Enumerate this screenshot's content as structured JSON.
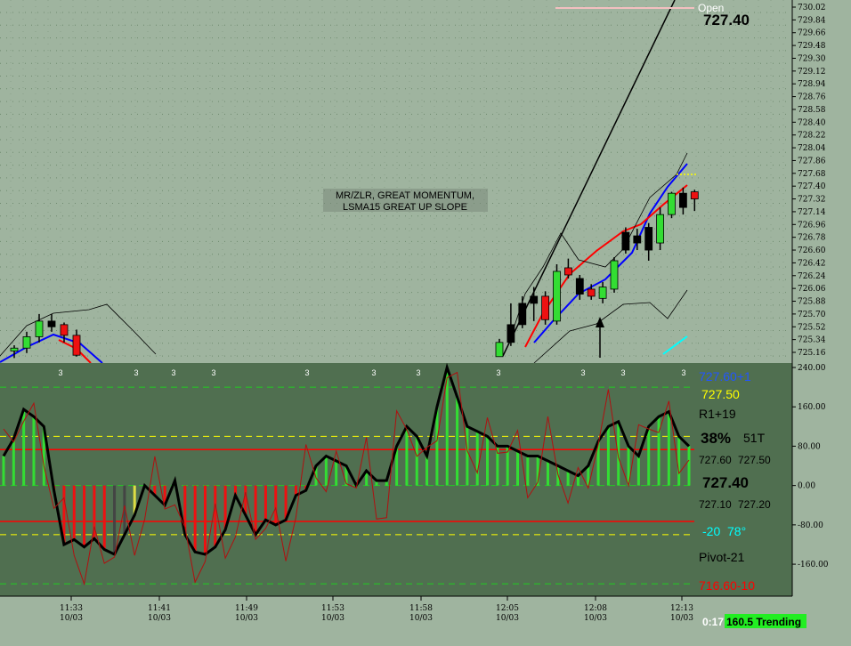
{
  "chart_data": [
    {
      "type": "candlestick",
      "panel": "price",
      "y_ticks": [
        "730.02",
        "729.84",
        "729.66",
        "729.48",
        "729.30",
        "729.12",
        "728.94",
        "728.76",
        "728.58",
        "728.40",
        "728.22",
        "728.04",
        "727.86",
        "727.68",
        "727.40",
        "727.32",
        "727.14",
        "726.96",
        "726.78",
        "726.60",
        "726.42",
        "726.24",
        "726.06",
        "725.88",
        "725.70",
        "725.52",
        "725.34",
        "725.16"
      ],
      "ylim": [
        725.1,
        730.02
      ],
      "last_price": "727.40",
      "open_label": "Open",
      "annotation": [
        "MR/ZLR, GREAT MOMENTUM,",
        "LSMA15 GREAT UP SLOPE"
      ],
      "candles_left": [
        {
          "o": 725.18,
          "h": 725.26,
          "l": 725.08,
          "c": 725.22,
          "color": "green"
        },
        {
          "o": 725.22,
          "h": 725.45,
          "l": 725.15,
          "c": 725.38,
          "color": "green"
        },
        {
          "o": 725.38,
          "h": 725.7,
          "l": 725.3,
          "c": 725.6,
          "color": "green"
        },
        {
          "o": 725.6,
          "h": 725.7,
          "l": 725.45,
          "c": 725.52,
          "color": "black"
        },
        {
          "o": 725.55,
          "h": 725.58,
          "l": 725.3,
          "c": 725.4,
          "color": "red"
        },
        {
          "o": 725.4,
          "h": 725.48,
          "l": 725.1,
          "c": 725.12,
          "color": "red"
        }
      ],
      "candles_right": [
        {
          "o": 725.1,
          "h": 725.35,
          "l": 725.1,
          "c": 725.3,
          "color": "green"
        },
        {
          "o": 725.3,
          "h": 725.85,
          "l": 725.25,
          "c": 725.55,
          "color": "black"
        },
        {
          "o": 725.55,
          "h": 725.95,
          "l": 725.5,
          "c": 725.85,
          "color": "black"
        },
        {
          "o": 725.85,
          "h": 726.08,
          "l": 725.6,
          "c": 725.95,
          "color": "black"
        },
        {
          "o": 725.95,
          "h": 726.02,
          "l": 725.55,
          "c": 725.62,
          "color": "red"
        },
        {
          "o": 725.6,
          "h": 726.4,
          "l": 725.55,
          "c": 726.3,
          "color": "green"
        },
        {
          "o": 726.35,
          "h": 726.48,
          "l": 726.2,
          "c": 726.25,
          "color": "red"
        },
        {
          "o": 726.2,
          "h": 726.25,
          "l": 725.9,
          "c": 725.98,
          "color": "black"
        },
        {
          "o": 726.05,
          "h": 726.12,
          "l": 725.9,
          "c": 725.95,
          "color": "red"
        },
        {
          "o": 725.92,
          "h": 726.15,
          "l": 725.85,
          "c": 726.08,
          "color": "green"
        },
        {
          "o": 726.05,
          "h": 726.5,
          "l": 726.0,
          "c": 726.45,
          "color": "green"
        },
        {
          "o": 726.6,
          "h": 726.92,
          "l": 726.55,
          "c": 726.85,
          "color": "black"
        },
        {
          "o": 726.8,
          "h": 726.9,
          "l": 726.6,
          "c": 726.7,
          "color": "black"
        },
        {
          "o": 726.6,
          "h": 726.98,
          "l": 726.45,
          "c": 726.92,
          "color": "black"
        },
        {
          "o": 726.7,
          "h": 727.2,
          "l": 726.6,
          "c": 727.1,
          "color": "green"
        },
        {
          "o": 727.1,
          "h": 727.42,
          "l": 727.05,
          "c": 727.4,
          "color": "green"
        },
        {
          "o": 727.4,
          "h": 727.48,
          "l": 727.1,
          "c": 727.2,
          "color": "black"
        },
        {
          "o": 727.42,
          "h": 727.45,
          "l": 727.15,
          "c": 727.32,
          "color": "red"
        }
      ]
    },
    {
      "type": "histogram",
      "panel": "cci",
      "y_ticks": [
        "240.00",
        "160.00",
        "80.00",
        "0.00",
        "-80.00",
        "-160.00"
      ],
      "ylim": [
        -225,
        240
      ],
      "top_marker": "3",
      "x_ticks": [
        {
          "t": "11:33",
          "d": "10/03"
        },
        {
          "t": "11:41",
          "d": "10/03"
        },
        {
          "t": "11:49",
          "d": "10/03"
        },
        {
          "t": "11:53",
          "d": "10/03"
        },
        {
          "t": "11:58",
          "d": "10/03"
        },
        {
          "t": "12:05",
          "d": "10/03"
        },
        {
          "t": "12:08",
          "d": "10/03"
        },
        {
          "t": "12:13",
          "d": "10/03"
        }
      ],
      "cci_line": [
        60,
        95,
        155,
        140,
        120,
        -10,
        -120,
        -110,
        -125,
        -108,
        -130,
        -140,
        -100,
        -60,
        0,
        -20,
        -40,
        10,
        -100,
        -135,
        -140,
        -125,
        -90,
        -20,
        -60,
        -100,
        -70,
        -80,
        -70,
        -20,
        -10,
        40,
        60,
        50,
        40,
        0,
        30,
        10,
        10,
        80,
        120,
        100,
        60,
        160,
        240,
        180,
        120,
        110,
        100,
        80,
        80,
        70,
        60,
        60,
        50,
        40,
        30,
        20,
        40,
        90,
        120,
        130,
        80,
        60,
        120,
        140,
        150,
        100,
        80
      ]
    }
  ],
  "status_panel": {
    "price_top": "727.60+1",
    "price_yellow": "727.50",
    "r_label": "R1+19",
    "pct": "38%",
    "t_label": "51T",
    "pair1_a": "727.60",
    "pair1_b": "727.50",
    "mid_price": "727.40",
    "pair2_a": "727.10",
    "pair2_b": "727.20",
    "cyan_vals": "-20  78°",
    "pivot": "Pivot-21",
    "price_bottom": "716.60-10",
    "timer": "0:17",
    "trend": "160.5 Trending"
  },
  "colors": {
    "bg_price": "#9fb49f",
    "bg_cci": "#506f50",
    "bar_green": "#33dd33",
    "bar_red": "#ee1111",
    "lsma_blue": "#0000ff",
    "ema_red": "#ff0000"
  }
}
